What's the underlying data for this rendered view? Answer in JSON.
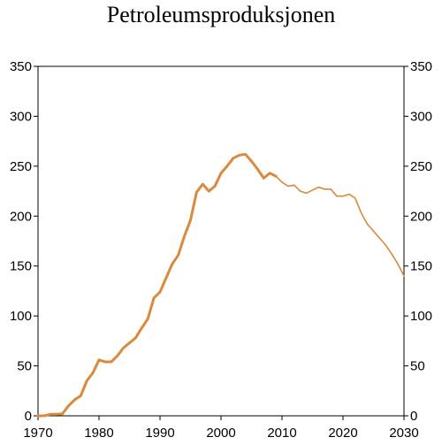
{
  "chart_data": {
    "type": "line",
    "title": "Petroleumsproduksjonen",
    "xlabel": "",
    "ylabel": "",
    "xlim": [
      1970,
      2030
    ],
    "ylim": [
      0,
      350
    ],
    "x_ticks": [
      1970,
      1980,
      1990,
      2000,
      2010,
      2020,
      2030
    ],
    "y_ticks": [
      0,
      50,
      100,
      150,
      200,
      250,
      300,
      350
    ],
    "grid": false,
    "legend": "none",
    "series": [
      {
        "color": "#D98A3C",
        "style": "thick",
        "x": [
          1970,
          1971,
          1972,
          1973,
          1974,
          1975,
          1976,
          1977,
          1978,
          1979,
          1980,
          1981,
          1982,
          1983,
          1984,
          1985,
          1986,
          1987,
          1988,
          1989,
          1990,
          1991,
          1992,
          1993,
          1994,
          1995,
          1996,
          1997,
          1998,
          1999,
          2000,
          2001,
          2002,
          2003,
          2004,
          2005,
          2006,
          2007,
          2008,
          2009
        ],
        "values": [
          0,
          0,
          1.5,
          1.6,
          2,
          10,
          16,
          20,
          35,
          43,
          56,
          54,
          54,
          60,
          68,
          73,
          78,
          88,
          97,
          118,
          124,
          138,
          152,
          161,
          180,
          196,
          224,
          232,
          225,
          230,
          243,
          250,
          258,
          261,
          262,
          255,
          247,
          238,
          243,
          240
        ]
      },
      {
        "color": "#D98A3C",
        "style": "thin",
        "x": [
          2009,
          2010,
          2011,
          2012,
          2013,
          2014,
          2015,
          2016,
          2017,
          2018,
          2019,
          2020,
          2021,
          2022,
          2023,
          2024,
          2025,
          2026,
          2027,
          2028,
          2029,
          2030
        ],
        "values": [
          240,
          234,
          230,
          231,
          225,
          223,
          226,
          229,
          227,
          227,
          220,
          220,
          222,
          218,
          203,
          192,
          185,
          178,
          171,
          162,
          152,
          140
        ]
      }
    ]
  }
}
